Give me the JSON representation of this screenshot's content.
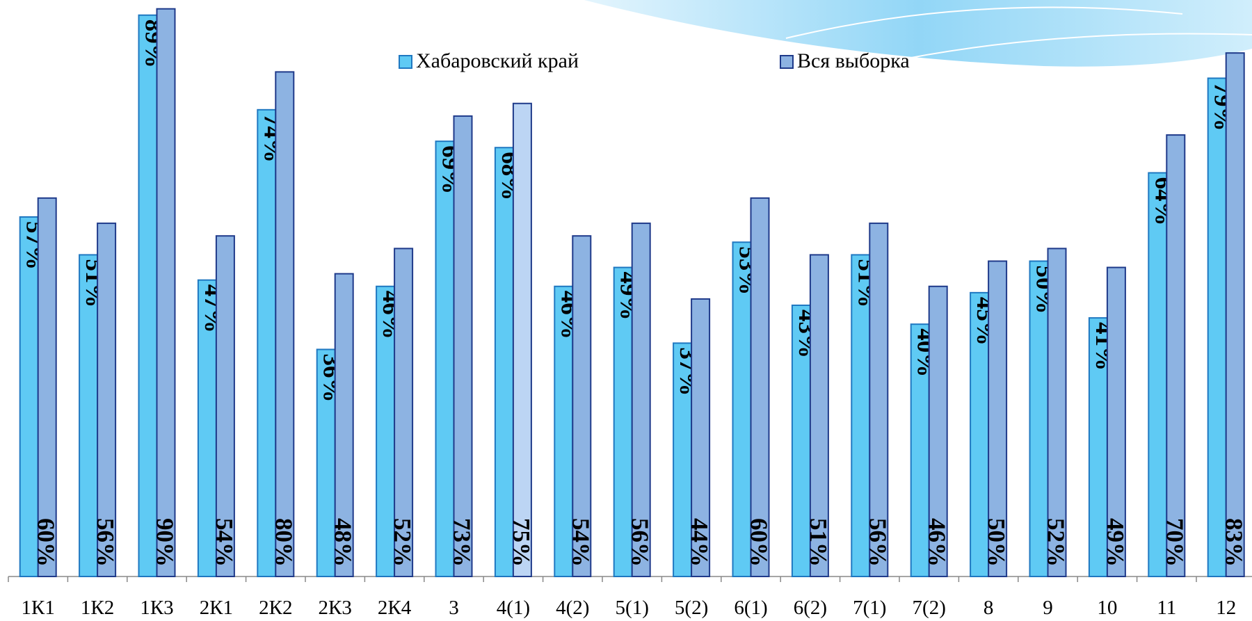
{
  "chart_data": {
    "type": "bar",
    "categories": [
      "1К1",
      "1К2",
      "1К3",
      "2К1",
      "2К2",
      "2К3",
      "2К4",
      "3",
      "4(1)",
      "4(2)",
      "5(1)",
      "5(2)",
      "6(1)",
      "6(2)",
      "7(1)",
      "7(2)",
      "8",
      "9",
      "10",
      "11",
      "12"
    ],
    "series": [
      {
        "name": "Хабаровский край",
        "color": "#5fcaf4",
        "stroke": "#1f78c1",
        "values": [
          57,
          51,
          89,
          47,
          74,
          36,
          46,
          69,
          68,
          46,
          49,
          37,
          53,
          43,
          51,
          40,
          45,
          50,
          41,
          64,
          79
        ],
        "value_labels": [
          "57%",
          "51%",
          "89%",
          "47%",
          "74%",
          "36%",
          "46%",
          "69%",
          "68%",
          "46%",
          "49%",
          "37%",
          "53%",
          "43%",
          "51%",
          "40%",
          "45%",
          "50%",
          "41%",
          "64%",
          "79%"
        ]
      },
      {
        "name": "Вся выборка",
        "color": "#8db3e2",
        "stroke": "#1f3a8a",
        "point_colors": {
          "8": "#bcd5f4"
        },
        "values": [
          60,
          56,
          90,
          54,
          80,
          48,
          52,
          73,
          75,
          54,
          56,
          44,
          60,
          51,
          56,
          46,
          50,
          52,
          49,
          70,
          83
        ],
        "value_labels": [
          "60%",
          "56%",
          "90%",
          "54%",
          "80%",
          "48%",
          "52%",
          "73%",
          "75%",
          "54%",
          "56%",
          "44%",
          "60%",
          "51%",
          "56%",
          "46%",
          "50%",
          "52%",
          "49%",
          "70%",
          "83%"
        ]
      }
    ],
    "legend": "top"
  }
}
